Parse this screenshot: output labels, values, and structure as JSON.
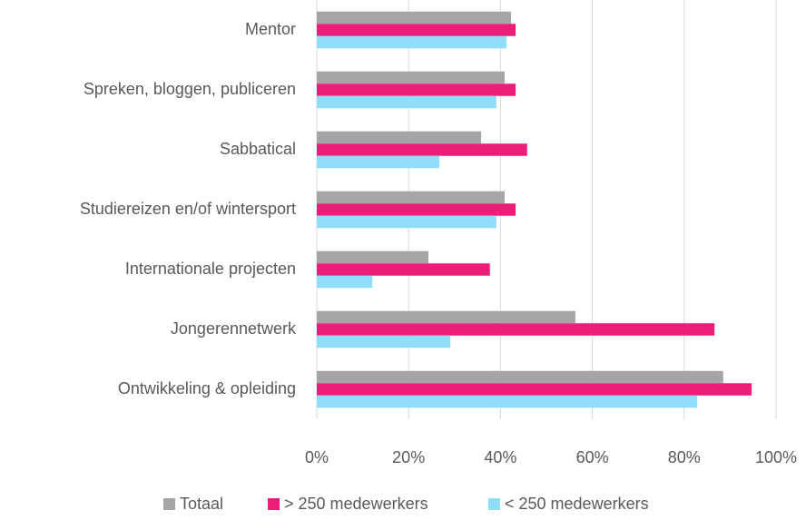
{
  "chart_data": {
    "type": "bar",
    "orientation": "horizontal",
    "categories": [
      "Mentor",
      "Spreken, bloggen, publiceren",
      "Sabbatical",
      "Studiereizen en/of wintersport",
      "Internationale projecten",
      "Jongerennetwerk",
      "Ontwikkeling & opleiding"
    ],
    "series": [
      {
        "name": "Totaal",
        "color": "#a5a5a5",
        "values": [
          42.3,
          40.9,
          35.8,
          40.9,
          24.3,
          56.3,
          88.5
        ]
      },
      {
        "name": "> 250 medewerkers",
        "color": "#ec1e79",
        "values": [
          43.3,
          43.3,
          45.8,
          43.3,
          37.7,
          86.6,
          94.7
        ]
      },
      {
        "name": "< 250 medewerkers",
        "color": "#8fddf9",
        "values": [
          41.3,
          39.1,
          26.7,
          39.1,
          12.1,
          29.1,
          82.8
        ]
      }
    ],
    "xlim": [
      0,
      100
    ],
    "xticks": [
      {
        "value": 0,
        "label": "0%"
      },
      {
        "value": 20,
        "label": "20%"
      },
      {
        "value": 40,
        "label": "40%"
      },
      {
        "value": 60,
        "label": "60%"
      },
      {
        "value": 80,
        "label": "80%"
      },
      {
        "value": 100,
        "label": "100%"
      }
    ],
    "grid": true,
    "legend": "bottom"
  }
}
